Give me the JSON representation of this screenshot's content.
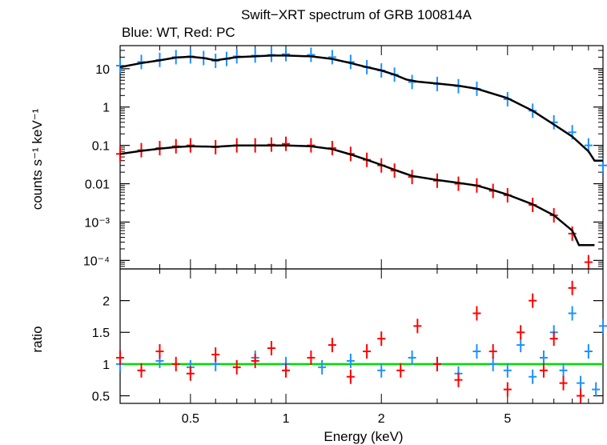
{
  "chart_data": {
    "type": "scatter",
    "title": "Swift−XRT spectrum of GRB 100814A",
    "subtitle": "Blue: WT, Red: PC",
    "xlabel": "Energy (keV)",
    "x_scale": "log",
    "xlim": [
      0.3,
      10
    ],
    "x_ticks": [
      {
        "value": 0.5,
        "label": "0.5"
      },
      {
        "value": 1,
        "label": "1"
      },
      {
        "value": 2,
        "label": "2"
      },
      {
        "value": 5,
        "label": "5"
      }
    ],
    "panels": [
      {
        "name": "spectrum",
        "ylabel": "counts s⁻¹ keV⁻¹",
        "y_scale": "log",
        "ylim": [
          6e-05,
          40
        ],
        "y_ticks": [
          {
            "value": 10,
            "label": "10"
          },
          {
            "value": 1,
            "label": "1"
          },
          {
            "value": 0.1,
            "label": "0.1"
          },
          {
            "value": 0.01,
            "label": "0.01"
          },
          {
            "value": 0.001,
            "label": "10⁻³"
          },
          {
            "value": 0.0001,
            "label": "10⁻⁴"
          }
        ],
        "series": [
          {
            "name": "WT data",
            "color": "#1e90ff",
            "x": [
              0.3,
              0.35,
              0.4,
              0.45,
              0.5,
              0.55,
              0.6,
              0.65,
              0.7,
              0.8,
              0.9,
              1.0,
              1.2,
              1.4,
              1.6,
              1.8,
              2.0,
              2.2,
              2.5,
              3.0,
              3.5,
              4.0,
              5.0,
              6.0,
              7.0,
              8.0,
              9.0,
              10.0
            ],
            "y": [
              12,
              15,
              17,
              20,
              21,
              19,
              16,
              18,
              21,
              22,
              23,
              24,
              23,
              20,
              15,
              11,
              9,
              7,
              4.5,
              4.0,
              3.5,
              3.0,
              1.6,
              0.8,
              0.4,
              0.22,
              0.1,
              0.03
            ]
          },
          {
            "name": "PC data",
            "color": "#ff0000",
            "x": [
              0.3,
              0.35,
              0.4,
              0.45,
              0.5,
              0.6,
              0.7,
              0.8,
              0.9,
              1.0,
              1.2,
              1.4,
              1.6,
              1.8,
              2.0,
              2.2,
              2.5,
              3.0,
              3.5,
              4.0,
              4.5,
              5.0,
              6.0,
              7.0,
              8.0,
              9.0
            ],
            "y": [
              0.06,
              0.075,
              0.085,
              0.095,
              0.1,
              0.09,
              0.1,
              0.1,
              0.105,
              0.11,
              0.1,
              0.085,
              0.06,
              0.042,
              0.03,
              0.022,
              0.015,
              0.012,
              0.01,
              0.009,
              0.0065,
              0.005,
              0.0028,
              0.0015,
              0.0005,
              9e-05
            ]
          },
          {
            "name": "WT model",
            "color": "#000000",
            "line": true,
            "x": [
              0.3,
              0.35,
              0.4,
              0.45,
              0.5,
              0.55,
              0.6,
              0.7,
              0.8,
              0.9,
              1.0,
              1.2,
              1.4,
              1.6,
              1.8,
              2.0,
              2.2,
              2.4,
              2.6,
              3.0,
              3.5,
              4.0,
              5.0,
              6.0,
              7.0,
              8.0,
              9.0,
              9.4,
              10.0
            ],
            "y": [
              11,
              14,
              16.5,
              19.5,
              20.5,
              19,
              16.5,
              20,
              21,
              22,
              22,
              21,
              18,
              14,
              11,
              9,
              7,
              5.2,
              4.6,
              4.1,
              3.6,
              3.0,
              1.7,
              0.8,
              0.35,
              0.17,
              0.07,
              0.04,
              0.04
            ]
          },
          {
            "name": "PC model",
            "color": "#000000",
            "line": true,
            "x": [
              0.3,
              0.35,
              0.4,
              0.45,
              0.5,
              0.6,
              0.7,
              0.8,
              0.9,
              1.0,
              1.2,
              1.4,
              1.6,
              1.8,
              2.0,
              2.2,
              2.5,
              3.0,
              3.5,
              4.0,
              4.5,
              5.0,
              6.0,
              7.0,
              8.0,
              8.4,
              9.4
            ],
            "y": [
              0.06,
              0.072,
              0.082,
              0.09,
              0.095,
              0.092,
              0.1,
              0.1,
              0.1,
              0.1,
              0.095,
              0.08,
              0.058,
              0.042,
              0.031,
              0.023,
              0.016,
              0.0125,
              0.0105,
              0.009,
              0.0068,
              0.0052,
              0.0029,
              0.0015,
              0.0006,
              0.00025,
              0.00025
            ]
          }
        ]
      },
      {
        "name": "ratio",
        "ylabel": "ratio",
        "y_scale": "linear",
        "ylim": [
          0.38,
          2.5
        ],
        "y_ticks": [
          {
            "value": 0.5,
            "label": "0.5"
          },
          {
            "value": 1,
            "label": "1"
          },
          {
            "value": 1.5,
            "label": "1.5"
          },
          {
            "value": 2,
            "label": "2"
          }
        ],
        "reference_line": {
          "value": 1,
          "color": "#00dd00"
        },
        "series": [
          {
            "name": "WT ratio",
            "color": "#1e90ff",
            "x": [
              0.3,
              0.4,
              0.5,
              0.6,
              0.8,
              1.0,
              1.3,
              1.6,
              2.0,
              2.5,
              3.0,
              3.5,
              4.0,
              4.5,
              5.0,
              5.5,
              6.0,
              6.5,
              7.0,
              7.5,
              8.0,
              8.5,
              9.0,
              9.5,
              10.0
            ],
            "y": [
              1.0,
              1.05,
              0.95,
              1.0,
              1.1,
              1.0,
              0.95,
              1.05,
              0.9,
              1.1,
              1.0,
              0.85,
              1.2,
              1.0,
              0.9,
              1.3,
              0.8,
              1.1,
              1.5,
              0.9,
              1.8,
              0.7,
              1.2,
              0.6,
              1.6
            ]
          },
          {
            "name": "PC ratio",
            "color": "#ff0000",
            "x": [
              0.3,
              0.35,
              0.4,
              0.45,
              0.5,
              0.6,
              0.7,
              0.8,
              0.9,
              1.0,
              1.2,
              1.4,
              1.6,
              1.8,
              2.0,
              2.3,
              2.6,
              3.0,
              3.5,
              4.0,
              4.5,
              5.0,
              5.5,
              6.0,
              6.5,
              7.0,
              7.5,
              8.0,
              8.5
            ],
            "y": [
              1.1,
              0.9,
              1.2,
              1.0,
              0.85,
              1.15,
              0.95,
              1.05,
              1.25,
              0.9,
              1.1,
              1.3,
              0.8,
              1.2,
              1.4,
              0.9,
              1.6,
              1.0,
              0.75,
              1.8,
              1.2,
              0.6,
              1.5,
              2.0,
              0.9,
              1.4,
              0.7,
              2.2,
              0.5
            ]
          }
        ]
      }
    ]
  }
}
